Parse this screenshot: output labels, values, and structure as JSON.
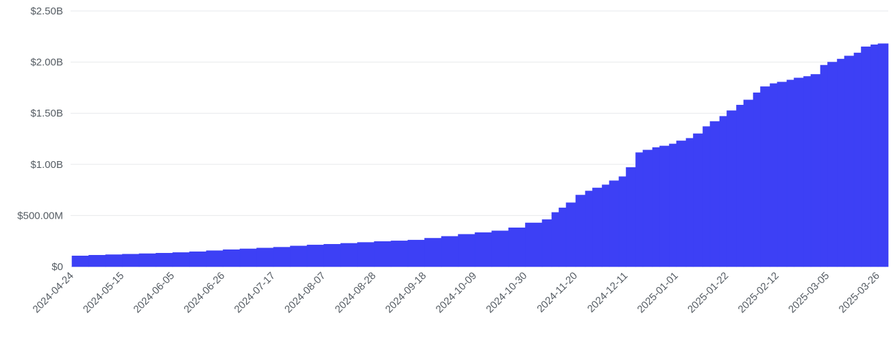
{
  "chart_data": {
    "type": "bar",
    "title": "",
    "xlabel": "",
    "ylabel": "",
    "ylim": [
      0,
      2500000000
    ],
    "grid": "horizontal",
    "legend": "none",
    "bar_color": "#3d40f5",
    "y_ticks": [
      {
        "value": 0,
        "label": "$0"
      },
      {
        "value": 500000000,
        "label": "$500.00M"
      },
      {
        "value": 1000000000,
        "label": "$1.00B"
      },
      {
        "value": 1500000000,
        "label": "$1.50B"
      },
      {
        "value": 2000000000,
        "label": "$2.00B"
      },
      {
        "value": 2500000000,
        "label": "$2.50B"
      }
    ],
    "x_tick_labels": [
      "2024-04-24",
      "2024-05-15",
      "2024-06-05",
      "2024-06-26",
      "2024-07-17",
      "2024-08-07",
      "2024-08-28",
      "2024-09-18",
      "2024-10-09",
      "2024-10-30",
      "2024-11-20",
      "2024-12-11",
      "2025-01-01",
      "2025-01-22",
      "2025-02-12",
      "2025-03-05",
      "2025-03-26"
    ],
    "series": [
      {
        "x": [
          "2024-04-24",
          "2024-05-01",
          "2024-05-08",
          "2024-05-15",
          "2024-05-22",
          "2024-05-29",
          "2024-06-05",
          "2024-06-12",
          "2024-06-19",
          "2024-06-26",
          "2024-07-03",
          "2024-07-10",
          "2024-07-17",
          "2024-07-24",
          "2024-07-31",
          "2024-08-07",
          "2024-08-14",
          "2024-08-21",
          "2024-08-28",
          "2024-09-04",
          "2024-09-11",
          "2024-09-18",
          "2024-09-25",
          "2024-10-02",
          "2024-10-09",
          "2024-10-16",
          "2024-10-23",
          "2024-10-30",
          "2024-11-06",
          "2024-11-10",
          "2024-11-13",
          "2024-11-16",
          "2024-11-20",
          "2024-11-24",
          "2024-11-27",
          "2024-12-01",
          "2024-12-04",
          "2024-12-08",
          "2024-12-11",
          "2024-12-15",
          "2024-12-18",
          "2024-12-22",
          "2024-12-25",
          "2024-12-29",
          "2025-01-01",
          "2025-01-05",
          "2025-01-08",
          "2025-01-12",
          "2025-01-15",
          "2025-01-19",
          "2025-01-22",
          "2025-01-26",
          "2025-01-29",
          "2025-02-02",
          "2025-02-05",
          "2025-02-09",
          "2025-02-12",
          "2025-02-16",
          "2025-02-19",
          "2025-02-23",
          "2025-02-26",
          "2025-03-02",
          "2025-03-05",
          "2025-03-09",
          "2025-03-12",
          "2025-03-16",
          "2025-03-19",
          "2025-03-23",
          "2025-03-26",
          "2025-03-29"
        ],
        "values": [
          105000000,
          112000000,
          117000000,
          122000000,
          127000000,
          132000000,
          138000000,
          146000000,
          156000000,
          166000000,
          174000000,
          182000000,
          190000000,
          202000000,
          212000000,
          219000000,
          228000000,
          237000000,
          246000000,
          252000000,
          260000000,
          278000000,
          296000000,
          316000000,
          333000000,
          350000000,
          380000000,
          428000000,
          460000000,
          530000000,
          575000000,
          625000000,
          700000000,
          740000000,
          770000000,
          800000000,
          840000000,
          880000000,
          970000000,
          1115000000,
          1140000000,
          1165000000,
          1180000000,
          1200000000,
          1230000000,
          1255000000,
          1300000000,
          1370000000,
          1420000000,
          1470000000,
          1525000000,
          1580000000,
          1630000000,
          1700000000,
          1760000000,
          1790000000,
          1805000000,
          1825000000,
          1845000000,
          1860000000,
          1880000000,
          1970000000,
          2000000000,
          2030000000,
          2060000000,
          2090000000,
          2150000000,
          2170000000,
          2180000000,
          2180000000
        ]
      }
    ]
  }
}
